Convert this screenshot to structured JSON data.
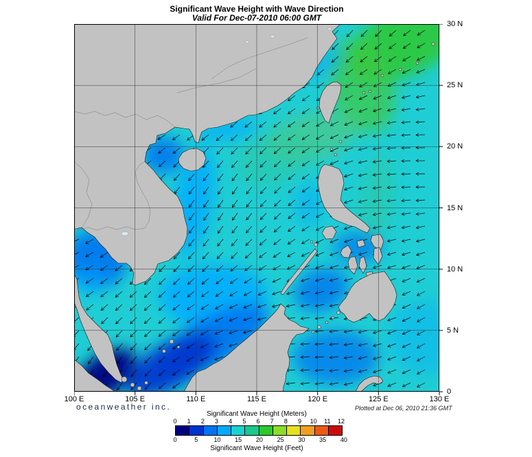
{
  "header": {
    "title": "Significant Wave Height with Wave Direction",
    "subtitle": "Valid For Dec-07-2010 06:00 GMT"
  },
  "map": {
    "extent": {
      "lon_min": 100,
      "lon_max": 130,
      "lat_min": 0,
      "lat_max": 30
    },
    "grid_interval_deg": 5,
    "x_ticks": [
      {
        "lon": 100,
        "label": "100 E"
      },
      {
        "lon": 105,
        "label": "105 E"
      },
      {
        "lon": 110,
        "label": "110 E"
      },
      {
        "lon": 115,
        "label": "115 E"
      },
      {
        "lon": 120,
        "label": "120 E"
      },
      {
        "lon": 125,
        "label": "125 E"
      },
      {
        "lon": 130,
        "label": "130 E"
      }
    ],
    "y_ticks": [
      {
        "lat": 30,
        "label": "30 N"
      },
      {
        "lat": 25,
        "label": "25 N"
      },
      {
        "lat": 20,
        "label": "20 N"
      },
      {
        "lat": 15,
        "label": "15 N"
      },
      {
        "lat": 10,
        "label": "10 N"
      },
      {
        "lat": 5,
        "label": "5 N"
      },
      {
        "lat": 0,
        "label": "0"
      }
    ],
    "colors": {
      "land": "#c2c2c2",
      "coast": "#1a1a1a",
      "country_border": "#7a7a7a",
      "grid": "#333333",
      "sea_base": "#1fced4",
      "arrow": "#000000",
      "lake": "#dce9f0"
    },
    "arrows": {
      "spacing_x": 21,
      "spacing_y": 19,
      "length": 13
    }
  },
  "chart_data": {
    "type": "heatmap",
    "title": "Significant Wave Height with Wave Direction",
    "valid_time": "Dec-07-2010 06:00 GMT",
    "field": "significant_wave_height",
    "units_primary": "meters",
    "units_secondary": "feet",
    "scale_meters": [
      0,
      1,
      2,
      3,
      4,
      5,
      6,
      7,
      8,
      9,
      10,
      11,
      12
    ],
    "scale_feet": [
      0,
      5,
      10,
      15,
      20,
      25,
      30,
      35,
      40
    ],
    "palette": [
      "#000080",
      "#0032cd",
      "#0073f0",
      "#00aaff",
      "#19d2d2",
      "#19c88c",
      "#2dc82d",
      "#8cdc28",
      "#e6e11e",
      "#f0a01e",
      "#eb5a14",
      "#cd0a0a"
    ],
    "vector_overlay": "wave direction arrows, generally pointing southwest to west across the region",
    "regions": [
      {
        "name": "northeast-pacific-swell",
        "lon": 127.5,
        "lat": 28.8,
        "rx_deg": 5.5,
        "ry_deg": 2.8,
        "rot_deg": -28,
        "color": "#2dc82d",
        "opacity": 0.85,
        "approx_height_m": 5.5
      },
      {
        "name": "east-of-taiwan",
        "lon": 123.6,
        "lat": 25.0,
        "rx_deg": 2.6,
        "ry_deg": 4.0,
        "rot_deg": -20,
        "color": "#3cc846",
        "opacity": 0.75,
        "approx_height_m": 5.0
      },
      {
        "name": "luzon-strait",
        "lon": 119.5,
        "lat": 20.8,
        "rx_deg": 4.0,
        "ry_deg": 1.9,
        "rot_deg": -15,
        "color": "#55c878",
        "opacity": 0.6,
        "approx_height_m": 4.8
      },
      {
        "name": "northeast-scs",
        "lon": 116.5,
        "lat": 19.0,
        "rx_deg": 3.5,
        "ry_deg": 2.2,
        "rot_deg": -15,
        "color": "#2dc8a0",
        "opacity": 0.5,
        "approx_height_m": 4.5
      },
      {
        "name": "east-luzon-band",
        "lon": 124.8,
        "lat": 15.5,
        "rx_deg": 1.4,
        "ry_deg": 4.0,
        "rot_deg": 8,
        "color": "#2dc896",
        "opacity": 0.45,
        "approx_height_m": 4.5
      },
      {
        "name": "vietnam-coast",
        "lon": 109.8,
        "lat": 15.5,
        "rx_deg": 1.6,
        "ry_deg": 4.5,
        "rot_deg": 10,
        "color": "#00aaff",
        "opacity": 0.8,
        "approx_height_m": 3.0
      },
      {
        "name": "gulf-of-tonkin",
        "lon": 107.3,
        "lat": 19.3,
        "rx_deg": 1.7,
        "ry_deg": 1.5,
        "rot_deg": 0,
        "color": "#0073f0",
        "opacity": 0.85,
        "approx_height_m": 2.0
      },
      {
        "name": "south-china-coast",
        "lon": 112.5,
        "lat": 21.4,
        "rx_deg": 2.6,
        "ry_deg": 0.8,
        "rot_deg": -8,
        "color": "#00aaff",
        "opacity": 0.7,
        "approx_height_m": 3.0
      },
      {
        "name": "fujian-coast",
        "lon": 120.5,
        "lat": 26.8,
        "rx_deg": 1.8,
        "ry_deg": 1.0,
        "rot_deg": -35,
        "color": "#00aaff",
        "opacity": 0.55,
        "approx_height_m": 3.2
      },
      {
        "name": "south-central-scs",
        "lon": 111.5,
        "lat": 7.8,
        "rx_deg": 4.5,
        "ry_deg": 2.6,
        "rot_deg": 0,
        "color": "#00aaff",
        "opacity": 0.85,
        "approx_height_m": 3.0
      },
      {
        "name": "nw-borneo-coast",
        "lon": 111.5,
        "lat": 4.2,
        "rx_deg": 5.0,
        "ry_deg": 2.0,
        "rot_deg": -28,
        "color": "#0073f0",
        "opacity": 0.9,
        "approx_height_m": 2.0
      },
      {
        "name": "karimata",
        "lon": 108.0,
        "lat": 2.2,
        "rx_deg": 4.2,
        "ry_deg": 1.8,
        "rot_deg": -30,
        "color": "#0032cd",
        "opacity": 0.9,
        "approx_height_m": 1.2
      },
      {
        "name": "malacca-strait",
        "lon": 102.3,
        "lat": 1.2,
        "rx_deg": 3.2,
        "ry_deg": 1.6,
        "rot_deg": -38,
        "color": "#000080",
        "opacity": 0.95,
        "approx_height_m": 0.3
      },
      {
        "name": "gulf-of-thailand",
        "lon": 101.8,
        "lat": 10.8,
        "rx_deg": 2.6,
        "ry_deg": 2.4,
        "rot_deg": 0,
        "color": "#0073f0",
        "opacity": 0.9,
        "approx_height_m": 2.0
      },
      {
        "name": "lower-gulf-thailand",
        "lon": 101.3,
        "lat": 9.0,
        "rx_deg": 1.3,
        "ry_deg": 1.1,
        "rot_deg": 0,
        "color": "#00aaff",
        "opacity": 0.6,
        "approx_height_m": 2.6
      },
      {
        "name": "sulu-sea",
        "lon": 120.3,
        "lat": 8.3,
        "rx_deg": 2.3,
        "ry_deg": 1.7,
        "rot_deg": -20,
        "color": "#0073f0",
        "opacity": 0.8,
        "approx_height_m": 2.0
      },
      {
        "name": "celebes-sea",
        "lon": 121.5,
        "lat": 2.8,
        "rx_deg": 3.5,
        "ry_deg": 2.2,
        "rot_deg": 0,
        "color": "#0073f0",
        "opacity": 0.75,
        "approx_height_m": 2.0
      },
      {
        "name": "visayan-seas",
        "lon": 123.3,
        "lat": 11.8,
        "rx_deg": 2.0,
        "ry_deg": 1.3,
        "rot_deg": 0,
        "color": "#0073f0",
        "opacity": 0.7,
        "approx_height_m": 2.0
      },
      {
        "name": "west-of-luzon",
        "lon": 119.3,
        "lat": 15.3,
        "rx_deg": 1.2,
        "ry_deg": 1.8,
        "rot_deg": 0,
        "color": "#00aaff",
        "opacity": 0.5,
        "approx_height_m": 3.2
      },
      {
        "name": "se-pacific-corner",
        "lon": 128.8,
        "lat": 4.5,
        "rx_deg": 3.0,
        "ry_deg": 3.0,
        "rot_deg": 0,
        "color": "#00aaff",
        "opacity": 0.4,
        "approx_height_m": 3.3
      }
    ]
  },
  "footer": {
    "brand": "oceanweather inc.",
    "plotted": "Plotted at Dec 06, 2010 21:36 GMT"
  },
  "legend": {
    "meters_label": "Significant Wave Height (Meters)",
    "feet_label": "Significant Wave Height (Feet)",
    "meters_ticks": [
      "0",
      "1",
      "2",
      "3",
      "4",
      "5",
      "6",
      "7",
      "8",
      "9",
      "10",
      "11",
      "12"
    ],
    "feet_ticks": [
      "0",
      "5",
      "10",
      "15",
      "20",
      "25",
      "30",
      "35",
      "40"
    ]
  }
}
